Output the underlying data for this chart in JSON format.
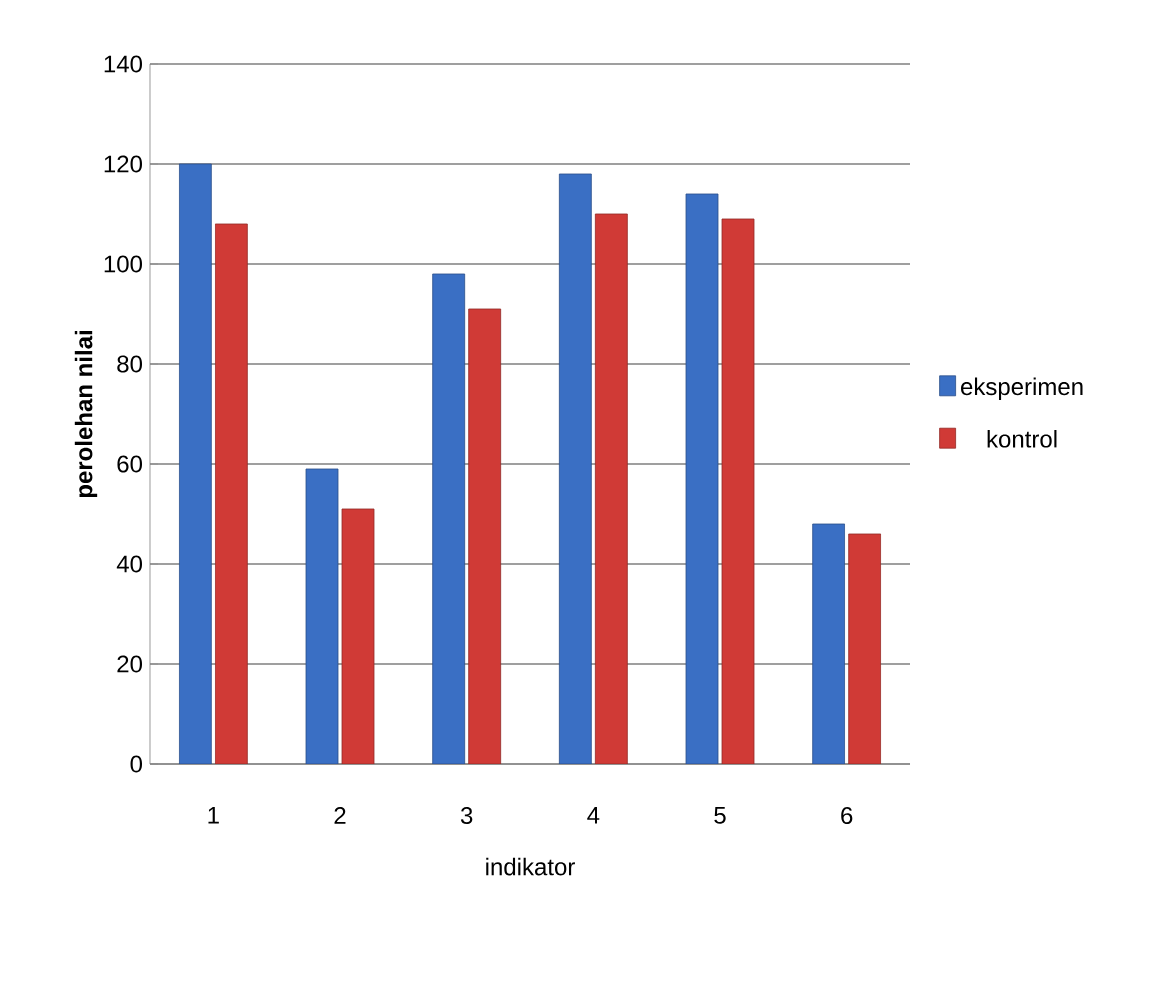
{
  "chart_data": {
    "type": "bar",
    "xlabel": "indikator",
    "ylabel": "perolehan nilai",
    "categories": [
      "1",
      "2",
      "3",
      "4",
      "5",
      "6"
    ],
    "series": [
      {
        "name": "eksperimen",
        "color": "#3a6fc4",
        "values": [
          120,
          59,
          98,
          118,
          114,
          48
        ]
      },
      {
        "name": "kontrol",
        "color": "#d03a36",
        "values": [
          108,
          51,
          91,
          110,
          109,
          46
        ]
      }
    ],
    "ylim": [
      0,
      140
    ],
    "yticks": [
      0,
      20,
      40,
      60,
      80,
      100,
      120,
      140
    ],
    "grid": "y",
    "legend": "right"
  }
}
